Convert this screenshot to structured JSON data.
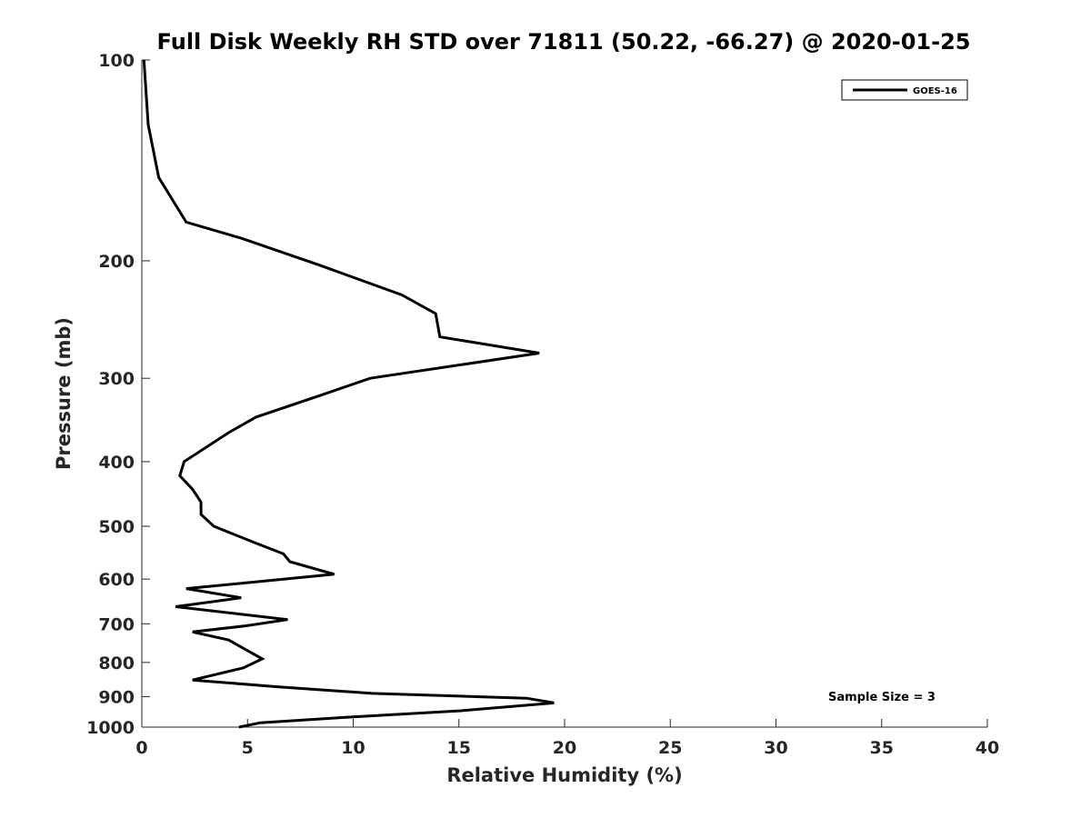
{
  "chart_data": {
    "type": "line",
    "title": "Full Disk Weekly RH STD over 71811 (50.22, -66.27) @ 2020-01-25",
    "xlabel": "Relative Humidity (%)",
    "ylabel": "Pressure (mb)",
    "xlim": [
      0,
      40
    ],
    "ylim": [
      100,
      1000
    ],
    "y_scale": "log",
    "y_reversed": true,
    "x_ticks": [
      0,
      5,
      10,
      15,
      20,
      25,
      30,
      35,
      40
    ],
    "y_ticks": [
      100,
      200,
      300,
      400,
      500,
      600,
      700,
      800,
      900,
      1000
    ],
    "legend": {
      "position": "top-right",
      "entries": [
        "GOES-16"
      ]
    },
    "annotation": "Sample Size = 3",
    "series": [
      {
        "name": "GOES-16",
        "color": "#000000",
        "points": [
          [
            0.1,
            100
          ],
          [
            0.3,
            125
          ],
          [
            0.8,
            150
          ],
          [
            2.1,
            175
          ],
          [
            4.7,
            185
          ],
          [
            8.4,
            203
          ],
          [
            12.3,
            225
          ],
          [
            13.9,
            240
          ],
          [
            14.1,
            260
          ],
          [
            18.8,
            275
          ],
          [
            10.8,
            300
          ],
          [
            8.6,
            317
          ],
          [
            5.4,
            343
          ],
          [
            4.1,
            362
          ],
          [
            2.0,
            400
          ],
          [
            1.8,
            420
          ],
          [
            2.4,
            440
          ],
          [
            2.8,
            460
          ],
          [
            2.8,
            480
          ],
          [
            3.4,
            500
          ],
          [
            5.4,
            530
          ],
          [
            6.7,
            550
          ],
          [
            7.0,
            565
          ],
          [
            9.1,
            590
          ],
          [
            2.1,
            620
          ],
          [
            4.7,
            640
          ],
          [
            1.6,
            660
          ],
          [
            6.9,
            690
          ],
          [
            4.9,
            705
          ],
          [
            2.4,
            720
          ],
          [
            4.1,
            740
          ],
          [
            4.9,
            765
          ],
          [
            5.7,
            790
          ],
          [
            4.8,
            815
          ],
          [
            2.4,
            850
          ],
          [
            6.4,
            870
          ],
          [
            10.9,
            890
          ],
          [
            18.2,
            905
          ],
          [
            19.5,
            920
          ],
          [
            15.1,
            945
          ],
          [
            10.1,
            965
          ],
          [
            5.6,
            985
          ],
          [
            4.6,
            1000
          ]
        ]
      }
    ]
  }
}
